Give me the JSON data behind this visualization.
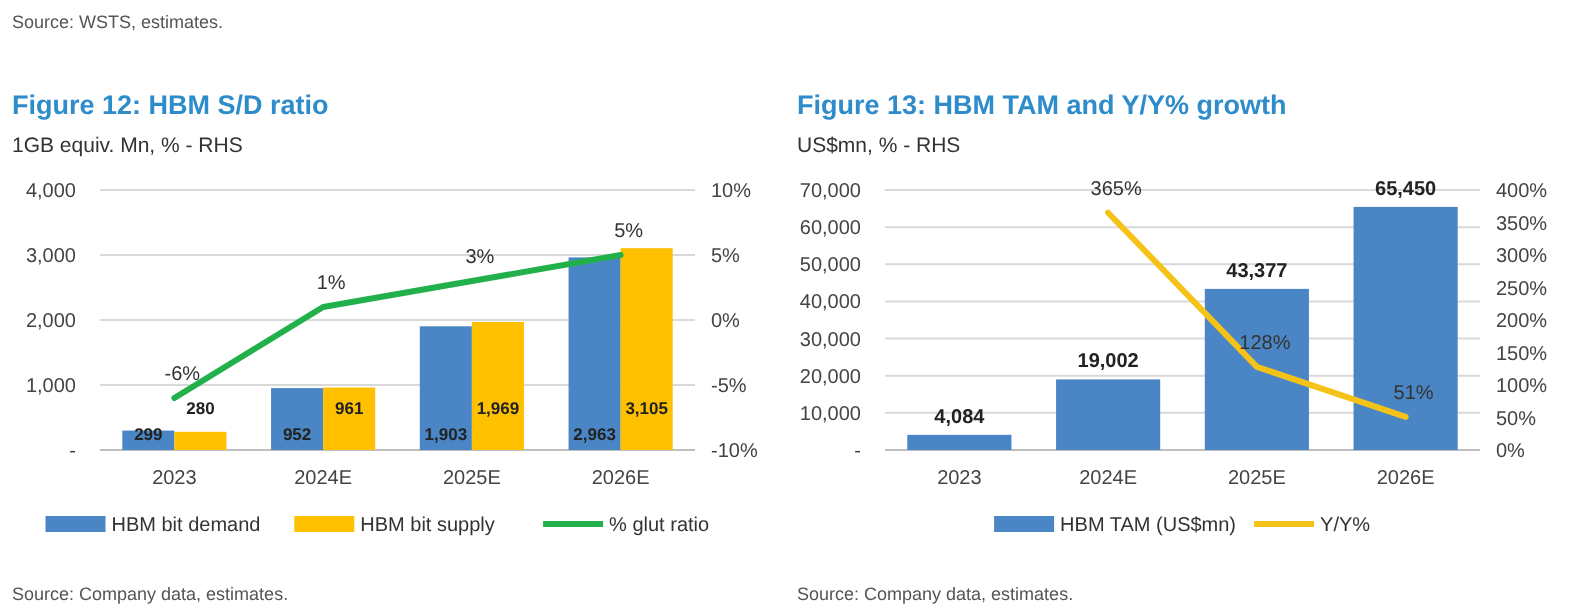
{
  "chart_data": [
    {
      "type": "bar",
      "title": "Figure 12: HBM S/D ratio",
      "subtitle": "1GB equiv. Mn, % - RHS",
      "categories": [
        "2023",
        "2024E",
        "2025E",
        "2026E"
      ],
      "series": [
        {
          "name": "HBM bit demand",
          "color": "#4a86c5",
          "values": [
            299,
            952,
            1903,
            2963
          ],
          "value_labels": [
            "299",
            "952",
            "1,903",
            "2,963"
          ]
        },
        {
          "name": "HBM bit supply",
          "color": "#ffc000",
          "values": [
            280,
            961,
            1969,
            3105
          ],
          "value_labels": [
            "280",
            "961",
            "1,969",
            "3,105"
          ]
        },
        {
          "name": "% glut ratio",
          "type": "line",
          "axis": "y2",
          "color": "#22b04b",
          "values": [
            -6,
            1,
            3,
            5
          ],
          "value_labels": [
            "-6%",
            "1%",
            "3%",
            "5%"
          ]
        }
      ],
      "ylim": [
        0,
        4000
      ],
      "yticks": [
        {
          "value": 0,
          "label": "-"
        },
        {
          "value": 1000,
          "label": "1,000"
        },
        {
          "value": 2000,
          "label": "2,000"
        },
        {
          "value": 3000,
          "label": "3,000"
        },
        {
          "value": 4000,
          "label": "4,000"
        }
      ],
      "y2lim": [
        -10,
        10
      ],
      "y2ticks": [
        {
          "value": -10,
          "label": "-10%"
        },
        {
          "value": -5,
          "label": "-5%"
        },
        {
          "value": 0,
          "label": "0%"
        },
        {
          "value": 5,
          "label": "5%"
        },
        {
          "value": 10,
          "label": "10%"
        }
      ],
      "grid": "y",
      "legend": "bottom",
      "annotations": [
        "Source: WSTS, estimates.",
        "Source: Company data, estimates."
      ]
    },
    {
      "type": "bar",
      "title": "Figure 13: HBM TAM and Y/Y% growth",
      "subtitle": "US$mn, % - RHS",
      "categories": [
        "2023",
        "2024E",
        "2025E",
        "2026E"
      ],
      "series": [
        {
          "name": "HBM TAM (US$mn)",
          "color": "#4a86c5",
          "values": [
            4084,
            19002,
            43377,
            65450
          ],
          "value_labels": [
            "4,084",
            "19,002",
            "43,377",
            "65,450"
          ]
        },
        {
          "name": "Y/Y%",
          "type": "line",
          "axis": "y2",
          "color": "#f5c318",
          "values": [
            null,
            365,
            128,
            51
          ],
          "value_labels": [
            null,
            "365%",
            "128%",
            "51%"
          ]
        }
      ],
      "ylim": [
        0,
        70000
      ],
      "yticks": [
        {
          "value": 0,
          "label": "-"
        },
        {
          "value": 10000,
          "label": "10,000"
        },
        {
          "value": 20000,
          "label": "20,000"
        },
        {
          "value": 30000,
          "label": "30,000"
        },
        {
          "value": 40000,
          "label": "40,000"
        },
        {
          "value": 50000,
          "label": "50,000"
        },
        {
          "value": 60000,
          "label": "60,000"
        },
        {
          "value": 70000,
          "label": "70,000"
        }
      ],
      "y2lim": [
        0,
        400
      ],
      "y2ticks": [
        {
          "value": 0,
          "label": "0%"
        },
        {
          "value": 50,
          "label": "50%"
        },
        {
          "value": 100,
          "label": "100%"
        },
        {
          "value": 150,
          "label": "150%"
        },
        {
          "value": 200,
          "label": "200%"
        },
        {
          "value": 250,
          "label": "250%"
        },
        {
          "value": 300,
          "label": "300%"
        },
        {
          "value": 350,
          "label": "350%"
        },
        {
          "value": 400,
          "label": "400%"
        }
      ],
      "grid": "y",
      "legend": "bottom",
      "annotations": [
        "Source: Company data, estimates."
      ]
    }
  ]
}
